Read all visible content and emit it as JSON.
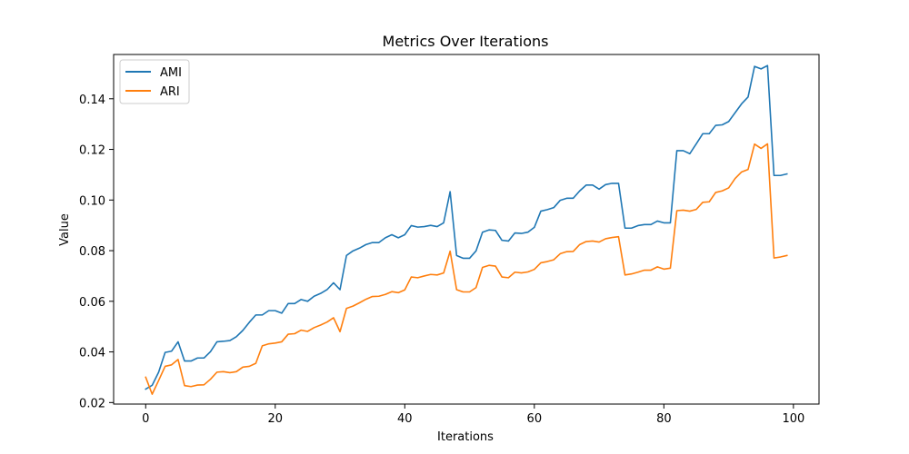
{
  "chart_data": {
    "type": "line",
    "title": "Metrics Over Iterations",
    "xlabel": "Iterations",
    "ylabel": "Value",
    "xlim": [
      -4.95,
      103.95
    ],
    "ylim": [
      0.0194,
      0.1575
    ],
    "xticks": [
      0,
      20,
      40,
      60,
      80,
      100
    ],
    "yticks": [
      0.02,
      0.04,
      0.06,
      0.08,
      0.1,
      0.12,
      0.14
    ],
    "ytick_labels": [
      "0.02",
      "0.04",
      "0.06",
      "0.08",
      "0.10",
      "0.12",
      "0.14"
    ],
    "grid": false,
    "legend_position": "top-left",
    "series": [
      {
        "name": "AMI",
        "color": "#1f77b4",
        "values": [
          0.0253,
          0.0268,
          0.032,
          0.0398,
          0.0403,
          0.044,
          0.0364,
          0.0364,
          0.0376,
          0.0376,
          0.0401,
          0.044,
          0.0442,
          0.0445,
          0.046,
          0.0485,
          0.0517,
          0.0546,
          0.0546,
          0.0563,
          0.0563,
          0.0553,
          0.0591,
          0.0591,
          0.0607,
          0.06,
          0.062,
          0.0631,
          0.0646,
          0.0673,
          0.0646,
          0.0781,
          0.0799,
          0.081,
          0.0824,
          0.0832,
          0.0832,
          0.0851,
          0.0863,
          0.0851,
          0.0863,
          0.0899,
          0.0893,
          0.0895,
          0.09,
          0.0895,
          0.091,
          0.1033,
          0.0781,
          0.077,
          0.077,
          0.0799,
          0.0873,
          0.0882,
          0.088,
          0.0841,
          0.0838,
          0.087,
          0.0868,
          0.0873,
          0.0892,
          0.0956,
          0.0962,
          0.097,
          0.0999,
          0.1007,
          0.1007,
          0.1036,
          0.1059,
          0.1059,
          0.1043,
          0.1061,
          0.1066,
          0.1066,
          0.0889,
          0.0889,
          0.0899,
          0.0903,
          0.0903,
          0.0917,
          0.091,
          0.091,
          0.1195,
          0.1195,
          0.1183,
          0.1222,
          0.1262,
          0.1262,
          0.1295,
          0.1297,
          0.131,
          0.1345,
          0.138,
          0.1407,
          0.1528,
          0.1518,
          0.1531,
          0.1097,
          0.1097,
          0.1103
        ]
      },
      {
        "name": "ARI",
        "color": "#ff7f0e",
        "values": [
          0.03,
          0.0233,
          0.0287,
          0.0343,
          0.0349,
          0.037,
          0.0267,
          0.0263,
          0.0269,
          0.027,
          0.0292,
          0.032,
          0.0322,
          0.0318,
          0.0322,
          0.034,
          0.0343,
          0.0355,
          0.0424,
          0.0432,
          0.0435,
          0.044,
          0.047,
          0.0472,
          0.0486,
          0.0481,
          0.0496,
          0.0506,
          0.0518,
          0.0535,
          0.048,
          0.0572,
          0.0581,
          0.0594,
          0.0608,
          0.0619,
          0.062,
          0.0627,
          0.0638,
          0.0634,
          0.0645,
          0.0696,
          0.0693,
          0.07,
          0.0706,
          0.0704,
          0.0712,
          0.0798,
          0.0646,
          0.0637,
          0.0637,
          0.0654,
          0.0734,
          0.0742,
          0.0739,
          0.0696,
          0.0693,
          0.0715,
          0.0712,
          0.0716,
          0.0726,
          0.0752,
          0.0757,
          0.0764,
          0.0788,
          0.0796,
          0.0797,
          0.0824,
          0.0836,
          0.0838,
          0.0834,
          0.0847,
          0.0852,
          0.0855,
          0.0704,
          0.0708,
          0.0715,
          0.0723,
          0.0723,
          0.0736,
          0.0727,
          0.0731,
          0.0958,
          0.096,
          0.0956,
          0.0963,
          0.0991,
          0.0993,
          0.103,
          0.1036,
          0.1048,
          0.1085,
          0.1111,
          0.1121,
          0.1221,
          0.1204,
          0.1222,
          0.0771,
          0.0775,
          0.0781
        ]
      }
    ]
  }
}
